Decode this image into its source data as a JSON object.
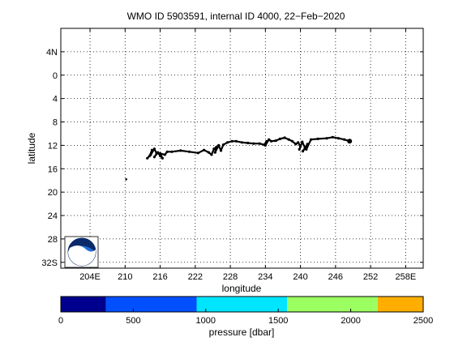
{
  "chart_data": {
    "type": "line",
    "title": "WMO ID 5903591, internal ID 4000, 22−Feb−2020",
    "xlabel": "longitude",
    "ylabel": "latitude",
    "xlim": [
      199,
      261
    ],
    "ylim": [
      -33,
      8
    ],
    "grid": true,
    "x_ticks": [
      {
        "value": 204,
        "label": "204E"
      },
      {
        "value": 210,
        "label": "210"
      },
      {
        "value": 216,
        "label": "216"
      },
      {
        "value": 222,
        "label": "222"
      },
      {
        "value": 228,
        "label": "228"
      },
      {
        "value": 234,
        "label": "234"
      },
      {
        "value": 240,
        "label": "240"
      },
      {
        "value": 246,
        "label": "246"
      },
      {
        "value": 252,
        "label": "252"
      },
      {
        "value": 258,
        "label": "258E"
      }
    ],
    "y_ticks": [
      {
        "value": 4,
        "label": "4N"
      },
      {
        "value": 0,
        "label": "0"
      },
      {
        "value": -4,
        "label": "4"
      },
      {
        "value": -8,
        "label": "8"
      },
      {
        "value": -12,
        "label": "12"
      },
      {
        "value": -16,
        "label": "16"
      },
      {
        "value": -20,
        "label": "20"
      },
      {
        "value": -24,
        "label": "24"
      },
      {
        "value": -28,
        "label": "28"
      },
      {
        "value": -32,
        "label": "32S"
      }
    ],
    "series": [
      {
        "color": "#000000",
        "x": [
          213.8,
          214.2,
          214.6,
          214.4,
          215.0,
          215.4,
          215.0,
          215.6,
          216.0,
          216.4,
          216.0,
          216.8,
          217.2,
          218.0,
          219.5,
          221.0,
          222.5,
          223.5,
          224.3,
          224.8,
          225.2,
          225.6,
          225.4,
          226.0,
          226.4,
          226.8,
          227.5,
          228.3,
          229.0,
          230.0,
          231.0,
          232.0,
          233.0,
          233.8,
          234.2,
          234.0,
          234.6,
          235.0,
          235.8,
          236.5,
          237.3,
          238.0,
          238.6,
          239.2,
          239.6,
          240.0,
          239.8,
          240.3,
          240.8,
          240.4,
          241.2,
          241.0,
          241.8,
          243.0,
          244.5,
          245.5,
          246.5,
          247.5,
          248.4
        ],
        "y": [
          -14.2,
          -13.8,
          -12.8,
          -13.6,
          -12.6,
          -13.4,
          -14.0,
          -13.2,
          -13.8,
          -14.2,
          -13.4,
          -13.6,
          -13.1,
          -13.1,
          -12.9,
          -13.1,
          -13.3,
          -12.8,
          -13.2,
          -13.6,
          -12.6,
          -12.3,
          -13.2,
          -12.0,
          -12.9,
          -11.9,
          -11.5,
          -11.3,
          -11.3,
          -11.5,
          -11.6,
          -11.7,
          -11.7,
          -11.9,
          -11.3,
          -12.0,
          -11.0,
          -11.3,
          -11.2,
          -10.9,
          -10.7,
          -11.0,
          -11.3,
          -11.8,
          -11.5,
          -12.2,
          -12.7,
          -11.4,
          -12.5,
          -13.0,
          -11.8,
          -12.7,
          -11.0,
          -10.9,
          -10.8,
          -10.6,
          -10.8,
          -11.0,
          -11.3
        ]
      }
    ],
    "extra_points": [
      {
        "x": 210.2,
        "y": -17.8
      }
    ],
    "colorbar": {
      "label": "pressure [dbar]",
      "ticks": [
        0,
        500,
        1000,
        1500,
        2000,
        2500
      ],
      "range": [
        0,
        2500
      ],
      "bands": [
        {
          "from": 0,
          "to": 312,
          "color": "#00008f"
        },
        {
          "from": 312,
          "to": 937,
          "color": "#0050ff"
        },
        {
          "from": 937,
          "to": 1562,
          "color": "#00e5ff"
        },
        {
          "from": 1562,
          "to": 2187,
          "color": "#9bff61"
        },
        {
          "from": 2187,
          "to": 2500,
          "color": "#ffae00"
        }
      ]
    }
  }
}
